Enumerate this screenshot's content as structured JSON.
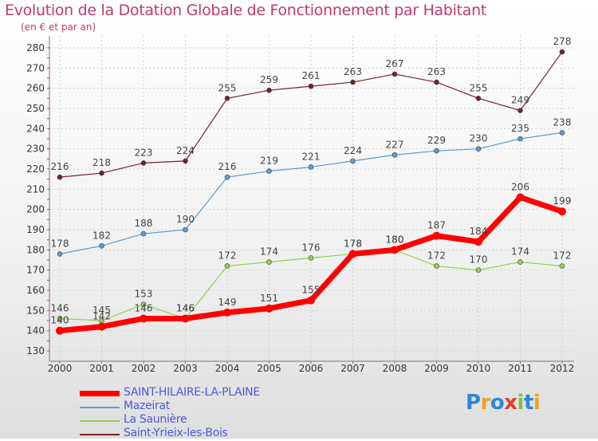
{
  "colors": {
    "title": "#c0396f",
    "legend_text": "#4a5bd9",
    "axis": "#777777",
    "grid": "#cfcfcf"
  },
  "chart_data": {
    "type": "line",
    "title": "Evolution de la Dotation Globale de Fonctionnement par Habitant",
    "subtitle": "(en € et par an)",
    "xlabel": "",
    "ylabel": "",
    "ylim": [
      130,
      280
    ],
    "yticks": [
      130,
      140,
      150,
      160,
      170,
      180,
      190,
      200,
      210,
      220,
      230,
      240,
      250,
      260,
      270,
      280
    ],
    "categories": [
      "2000",
      "2001",
      "2002",
      "2003",
      "2004",
      "2005",
      "2006",
      "2007",
      "2008",
      "2009",
      "2010",
      "2011",
      "2012"
    ],
    "grid": true,
    "legend_position": "bottom-left",
    "series": [
      {
        "name": "Saint-Yrieix-les-Bois",
        "color": "#7a1f2a",
        "width": 1.2,
        "values": [
          216,
          218,
          223,
          224,
          255,
          259,
          261,
          263,
          267,
          263,
          255,
          249,
          278
        ]
      },
      {
        "name": "Mazeirat",
        "color": "#5b9bd5",
        "width": 1.2,
        "values": [
          178,
          182,
          188,
          190,
          216,
          219,
          221,
          224,
          227,
          229,
          230,
          235,
          238
        ]
      },
      {
        "name": "La Saunière",
        "color": "#92d050",
        "width": 1.2,
        "values": [
          146,
          145,
          153,
          146,
          172,
          174,
          176,
          178,
          180,
          172,
          170,
          174,
          172
        ]
      },
      {
        "name": "SAINT-HILAIRE-LA-PLAINE",
        "color": "#ff0000",
        "width": 7,
        "values": [
          140,
          142,
          146,
          146,
          149,
          151,
          155,
          178,
          180,
          187,
          184,
          206,
          199
        ]
      }
    ]
  },
  "legend": {
    "items": [
      {
        "label": "SAINT-HILAIRE-LA-PLAINE",
        "color": "#ff0000"
      },
      {
        "label": "Mazeirat",
        "color": "#5b9bd5"
      },
      {
        "label": "La Saunière",
        "color": "#92d050"
      },
      {
        "label": "Saint-Yrieix-les-Bois",
        "color": "#7a1f2a"
      }
    ]
  },
  "logo": {
    "letters": [
      {
        "char": "P",
        "color": "#2e86d9"
      },
      {
        "char": "r",
        "color": "#f0a020"
      },
      {
        "char": "o",
        "color": "#2e86d9"
      },
      {
        "char": "x",
        "color": "#e33a2a"
      },
      {
        "char": "i",
        "color": "#7cc242"
      },
      {
        "char": "t",
        "color": "#2e86d9"
      },
      {
        "char": "i",
        "color": "#f0a020"
      }
    ]
  }
}
